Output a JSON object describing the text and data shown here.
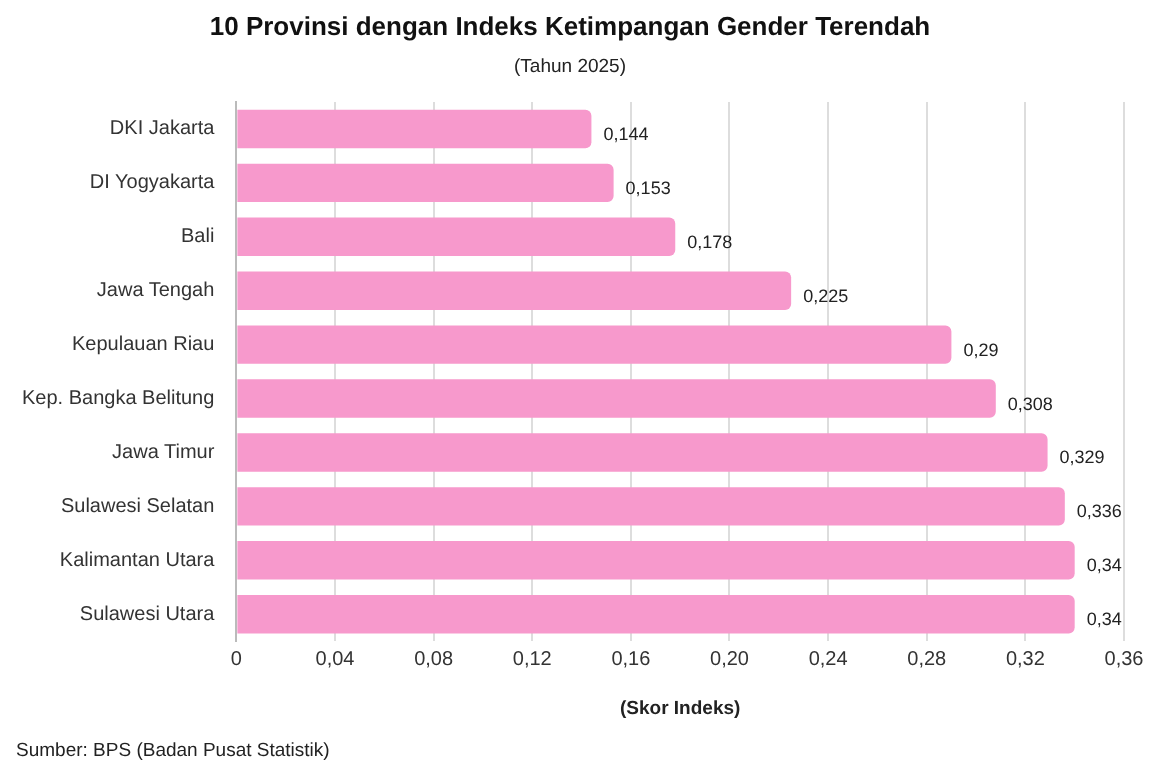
{
  "chart_data": {
    "type": "bar",
    "orientation": "horizontal",
    "title": "10 Provinsi dengan Indeks Ketimpangan Gender Terendah",
    "subtitle": "(Tahun 2025)",
    "xlabel": "(Skor Indeks)",
    "categories": [
      "DKI Jakarta",
      "DI Yogyakarta",
      "Bali",
      "Jawa Tengah",
      "Kepulauan Riau",
      "Kep. Bangka Belitung",
      "Jawa Timur",
      "Sulawesi Selatan",
      "Kalimantan Utara",
      "Sulawesi Utara"
    ],
    "values": [
      0.144,
      0.153,
      0.178,
      0.225,
      0.29,
      0.308,
      0.329,
      0.336,
      0.34,
      0.34
    ],
    "value_labels": [
      "0,144",
      "0,153",
      "0,178",
      "0,225",
      "0,29",
      "0,308",
      "0,329",
      "0,336",
      "0,34",
      "0,34"
    ],
    "color": "#f799cc",
    "xlim": [
      0,
      0.36
    ],
    "xticks": [
      0,
      {
        "value": 0.04,
        "label": "0,04"
      },
      {
        "value": 0.08,
        "label": "0,08"
      },
      {
        "value": 0.12,
        "label": "0,12"
      },
      {
        "value": 0.16,
        "label": "0,16"
      },
      {
        "value": 0.2,
        "label": "0,20"
      },
      {
        "value": 0.24,
        "label": "0,24"
      },
      {
        "value": 0.28,
        "label": "0,28"
      },
      {
        "value": 0.32,
        "label": "0,32"
      },
      {
        "value": 0.36,
        "label": "0,36"
      }
    ],
    "grid": "x",
    "annotations": [
      "Sumber: BPS (Badan Pusat Statistik)"
    ]
  }
}
